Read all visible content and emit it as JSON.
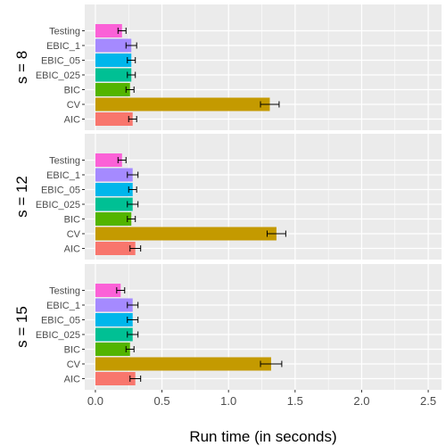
{
  "chart_data": {
    "type": "bar",
    "orientation": "horizontal",
    "facet_by": "s",
    "categories": [
      "AIC",
      "CV",
      "BIC",
      "EBIC_025",
      "EBIC_05",
      "EBIC_1",
      "Testing"
    ],
    "xlabel": "Run time (in seconds)",
    "ylabel": "",
    "xlim": [
      -0.08,
      2.6
    ],
    "x_ticks": [
      0.0,
      0.5,
      1.0,
      1.5,
      2.0,
      2.5
    ],
    "x_tick_labels": [
      "0.0",
      "0.5",
      "1.0",
      "1.5",
      "2.0",
      "2.5"
    ],
    "grid": true,
    "legend": "none",
    "panels": [
      {
        "label": "s = 8",
        "values": {
          "AIC": 0.28,
          "CV": 1.31,
          "BIC": 0.26,
          "EBIC_025": 0.27,
          "EBIC_05": 0.27,
          "EBIC_1": 0.27,
          "Testing": 0.2
        },
        "errors": {
          "AIC": 0.03,
          "CV": 0.07,
          "BIC": 0.03,
          "EBIC_025": 0.03,
          "EBIC_05": 0.03,
          "EBIC_1": 0.04,
          "Testing": 0.03
        }
      },
      {
        "label": "s = 12",
        "values": {
          "AIC": 0.3,
          "CV": 1.36,
          "BIC": 0.27,
          "EBIC_025": 0.28,
          "EBIC_05": 0.28,
          "EBIC_1": 0.28,
          "Testing": 0.2
        },
        "errors": {
          "AIC": 0.04,
          "CV": 0.07,
          "BIC": 0.03,
          "EBIC_025": 0.04,
          "EBIC_05": 0.03,
          "EBIC_1": 0.04,
          "Testing": 0.03
        }
      },
      {
        "label": "s = 15",
        "values": {
          "AIC": 0.3,
          "CV": 1.32,
          "BIC": 0.26,
          "EBIC_025": 0.28,
          "EBIC_05": 0.28,
          "EBIC_1": 0.28,
          "Testing": 0.19
        },
        "errors": {
          "AIC": 0.04,
          "CV": 0.08,
          "BIC": 0.03,
          "EBIC_025": 0.04,
          "EBIC_05": 0.04,
          "EBIC_1": 0.04,
          "Testing": 0.03
        }
      }
    ],
    "colors": {
      "AIC": "#F8766D",
      "CV": "#C49A00",
      "BIC": "#53B400",
      "EBIC_025": "#00C094",
      "EBIC_05": "#00B6EB",
      "EBIC_1": "#A58AFF",
      "Testing": "#FB61D7",
      "panel_background": "#EBEBEB",
      "grid_line": "#FFFFFF",
      "error_bar": "#000000"
    }
  }
}
